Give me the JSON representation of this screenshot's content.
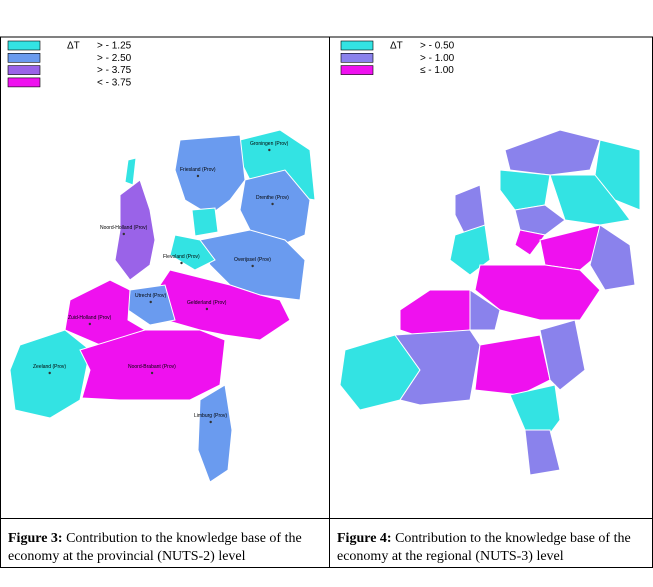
{
  "panels": [
    {
      "legend": {
        "header": "ΔT",
        "items": [
          {
            "label": "> - 1.25",
            "color": "#33e3e3"
          },
          {
            "label": "> - 2.50",
            "color": "#6a9bef"
          },
          {
            "label": "> - 3.75",
            "color": "#9a63e8"
          },
          {
            "label": "< - 3.75",
            "color": "#ef11ef"
          }
        ]
      },
      "labels": [
        "Groningen (Prov)",
        "Friesland (Prov)",
        "Drenthe (Prov)",
        "Noord-Holland (Prov)",
        "Flevoland (Prov)",
        "Overijssel (Prov)",
        "Utrecht (Prov)",
        "Gelderland (Prov)",
        "Zuid-Holland (Prov)",
        "Zeeland (Prov)",
        "Noord-Brabant (Prov)",
        "Limburg (Prov)"
      ],
      "caption": {
        "figure": "Figure 3:",
        "text": " Contribution to the knowledge base of the economy at the provincial (NUTS-2) level"
      }
    },
    {
      "legend": {
        "header": "ΔT",
        "items": [
          {
            "label": "> - 0.50",
            "color": "#33e3e3"
          },
          {
            "label": "> - 1.00",
            "color": "#8a82ec"
          },
          {
            "label": "≤ - 1.00",
            "color": "#ef11ef"
          }
        ]
      },
      "caption": {
        "figure": "Figure 4:",
        "text": " Contribution to the knowledge base of the economy at the regional (NUTS-3) level"
      }
    }
  ]
}
